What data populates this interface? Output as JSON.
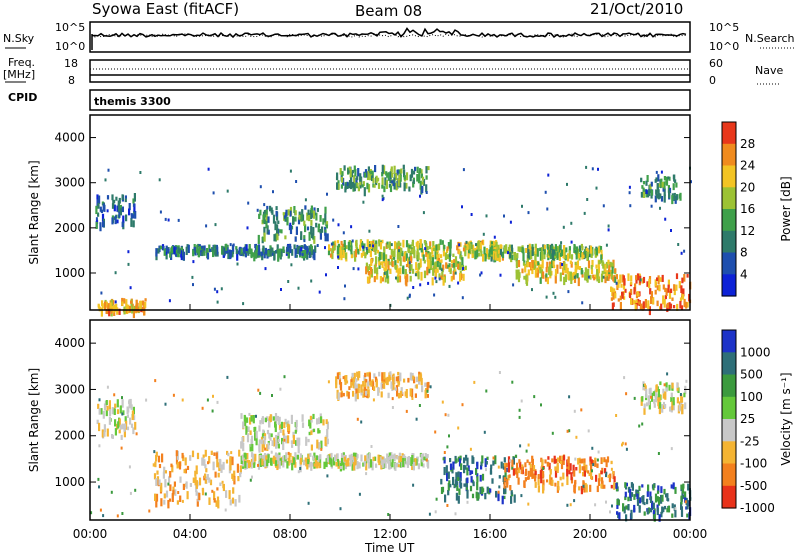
{
  "header": {
    "station": "Syowa East (fitACF)",
    "beam": "Beam 08",
    "date": "21/Oct/2010"
  },
  "panels": {
    "nsky_label": "N.Sky",
    "nsky_ticks": [
      "10^5",
      "10^0"
    ],
    "nsearch_label": "N.Search",
    "nsearch_ticks": [
      "10^5",
      "10^0"
    ],
    "freq_label": "Freq.",
    "freq_unit": "[MHz]",
    "freq_ticks": [
      "18",
      "8"
    ],
    "nave_label": "Nave",
    "nave_ticks": [
      "60",
      "0"
    ],
    "cpid_label": "CPID",
    "cpid_value": "themis 3300"
  },
  "chart_data": [
    {
      "type": "heatmap",
      "name": "power",
      "xlabel": "Time UT",
      "ylabel": "Slant Range [km]",
      "x_ticks": [
        "00:00",
        "04:00",
        "08:00",
        "12:00",
        "16:00",
        "20:00",
        "00:00"
      ],
      "xlim_hours": [
        0,
        24
      ],
      "y_ticks": [
        1000,
        2000,
        3000,
        4000
      ],
      "ylim": [
        180,
        4500
      ],
      "colorbar_label": "Power [dB]",
      "colorbar_ticks": [
        "4",
        "8",
        "12",
        "16",
        "20",
        "24",
        "28"
      ],
      "colorbar_range": [
        0,
        30
      ],
      "colors": [
        "#0d22d6",
        "#1e4fae",
        "#2e7a6a",
        "#3fa04a",
        "#9cc234",
        "#f3c424",
        "#f08b1e",
        "#e8371b"
      ],
      "echo_bands": [
        {
          "t0": 0.3,
          "t1": 2.2,
          "r0": 200,
          "r1": 450,
          "level": 22
        },
        {
          "t0": 0.2,
          "t1": 1.8,
          "r0": 2100,
          "r1": 2800,
          "level": 6
        },
        {
          "t0": 2.5,
          "t1": 9.0,
          "r0": 1450,
          "r1": 1650,
          "level": 8
        },
        {
          "t0": 6.7,
          "t1": 9.5,
          "r0": 1800,
          "r1": 2500,
          "level": 10
        },
        {
          "t0": 9.5,
          "t1": 16.5,
          "r0": 1400,
          "r1": 1750,
          "level": 18
        },
        {
          "t0": 9.8,
          "t1": 13.5,
          "r0": 2900,
          "r1": 3400,
          "level": 12
        },
        {
          "t0": 11.0,
          "t1": 15.0,
          "r0": 900,
          "r1": 1400,
          "level": 20
        },
        {
          "t0": 16.0,
          "t1": 20.5,
          "r0": 1400,
          "r1": 1650,
          "level": 16
        },
        {
          "t0": 17.0,
          "t1": 21.0,
          "r0": 900,
          "r1": 1300,
          "level": 20
        },
        {
          "t0": 20.8,
          "t1": 24.0,
          "r0": 250,
          "r1": 1000,
          "level": 26
        },
        {
          "t0": 22.0,
          "t1": 23.6,
          "r0": 2700,
          "r1": 3200,
          "level": 10
        }
      ]
    },
    {
      "type": "heatmap",
      "name": "velocity",
      "xlabel": "Time UT",
      "ylabel": "Slant Range [km]",
      "x_ticks": [
        "00:00",
        "04:00",
        "08:00",
        "12:00",
        "16:00",
        "20:00",
        "00:00"
      ],
      "xlim_hours": [
        0,
        24
      ],
      "y_ticks": [
        1000,
        2000,
        3000,
        4000
      ],
      "ylim": [
        180,
        4500
      ],
      "colorbar_label": "Velocity [m s⁻¹]",
      "colorbar_ticks": [
        "1000",
        "500",
        "100",
        "25",
        "-25",
        "-100",
        "-500",
        "-1000"
      ],
      "colors": [
        "#1d33c8",
        "#2e6f78",
        "#3b9a3e",
        "#64c83a",
        "#c8c8c8",
        "#f4b433",
        "#f3801e",
        "#e8321a"
      ],
      "echo_bands": [
        {
          "t0": 0.2,
          "t1": 1.8,
          "r0": 2000,
          "r1": 2800,
          "level": 4
        },
        {
          "t0": 2.5,
          "t1": 6.0,
          "r0": 600,
          "r1": 1700,
          "level": 5
        },
        {
          "t0": 6.0,
          "t1": 9.5,
          "r0": 1800,
          "r1": 2500,
          "level": 4
        },
        {
          "t0": 6.0,
          "t1": 13.5,
          "r0": 1400,
          "r1": 1650,
          "level": 4
        },
        {
          "t0": 9.8,
          "t1": 13.5,
          "r0": 2900,
          "r1": 3400,
          "level": 5
        },
        {
          "t0": 14.0,
          "t1": 17.0,
          "r0": 700,
          "r1": 1600,
          "level": 1
        },
        {
          "t0": 16.5,
          "t1": 21.0,
          "r0": 900,
          "r1": 1600,
          "level": 6
        },
        {
          "t0": 21.0,
          "t1": 24.0,
          "r0": 300,
          "r1": 1000,
          "level": 1
        },
        {
          "t0": 22.0,
          "t1": 23.8,
          "r0": 2600,
          "r1": 3200,
          "level": 4
        }
      ]
    }
  ]
}
